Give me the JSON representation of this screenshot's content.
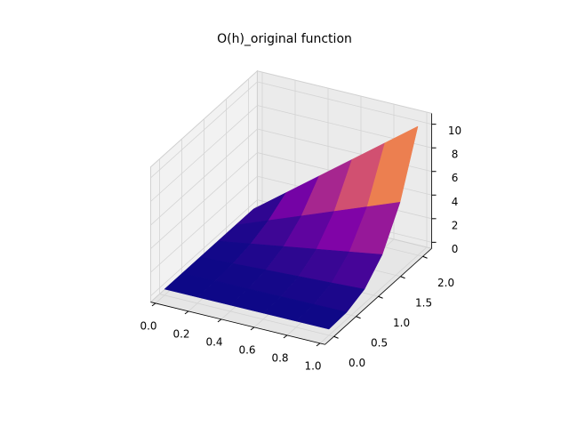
{
  "chart_data": {
    "type": "surface",
    "title": "O(h)_original function",
    "x": [
      0,
      0.2,
      0.4,
      0.6,
      0.8,
      1
    ],
    "y": [
      0,
      0.4,
      0.8,
      1.2,
      1.6,
      2
    ],
    "z": [
      [
        0,
        0,
        0,
        0,
        0,
        0
      ],
      [
        0,
        0.02,
        0.03,
        0.05,
        0.07,
        0.08
      ],
      [
        0,
        0.13,
        0.27,
        0.4,
        0.53,
        0.67
      ],
      [
        0,
        0.45,
        0.9,
        1.35,
        1.8,
        2.25
      ],
      [
        0,
        1.07,
        2.13,
        3.2,
        4.26,
        5.33
      ],
      [
        0,
        2.08,
        4.16,
        6.24,
        8.32,
        10.4
      ]
    ],
    "colormap": "plasma",
    "xlim": [
      0,
      1
    ],
    "ylim": [
      0,
      2
    ],
    "zlim": [
      0,
      10.4
    ],
    "xticks": [
      {
        "value": 0,
        "label": "0.0"
      },
      {
        "value": 0.2,
        "label": "0.2"
      },
      {
        "value": 0.4,
        "label": "0.4"
      },
      {
        "value": 0.6,
        "label": "0.6"
      },
      {
        "value": 0.8,
        "label": "0.8"
      },
      {
        "value": 1,
        "label": "1.0"
      }
    ],
    "yticks": [
      {
        "value": 0,
        "label": "0.0"
      },
      {
        "value": 0.5,
        "label": "0.5"
      },
      {
        "value": 1,
        "label": "1.0"
      },
      {
        "value": 1.5,
        "label": "1.5"
      },
      {
        "value": 2,
        "label": "2.0"
      }
    ],
    "zticks": [
      0,
      2,
      4,
      6,
      8,
      10
    ],
    "grid": true
  }
}
